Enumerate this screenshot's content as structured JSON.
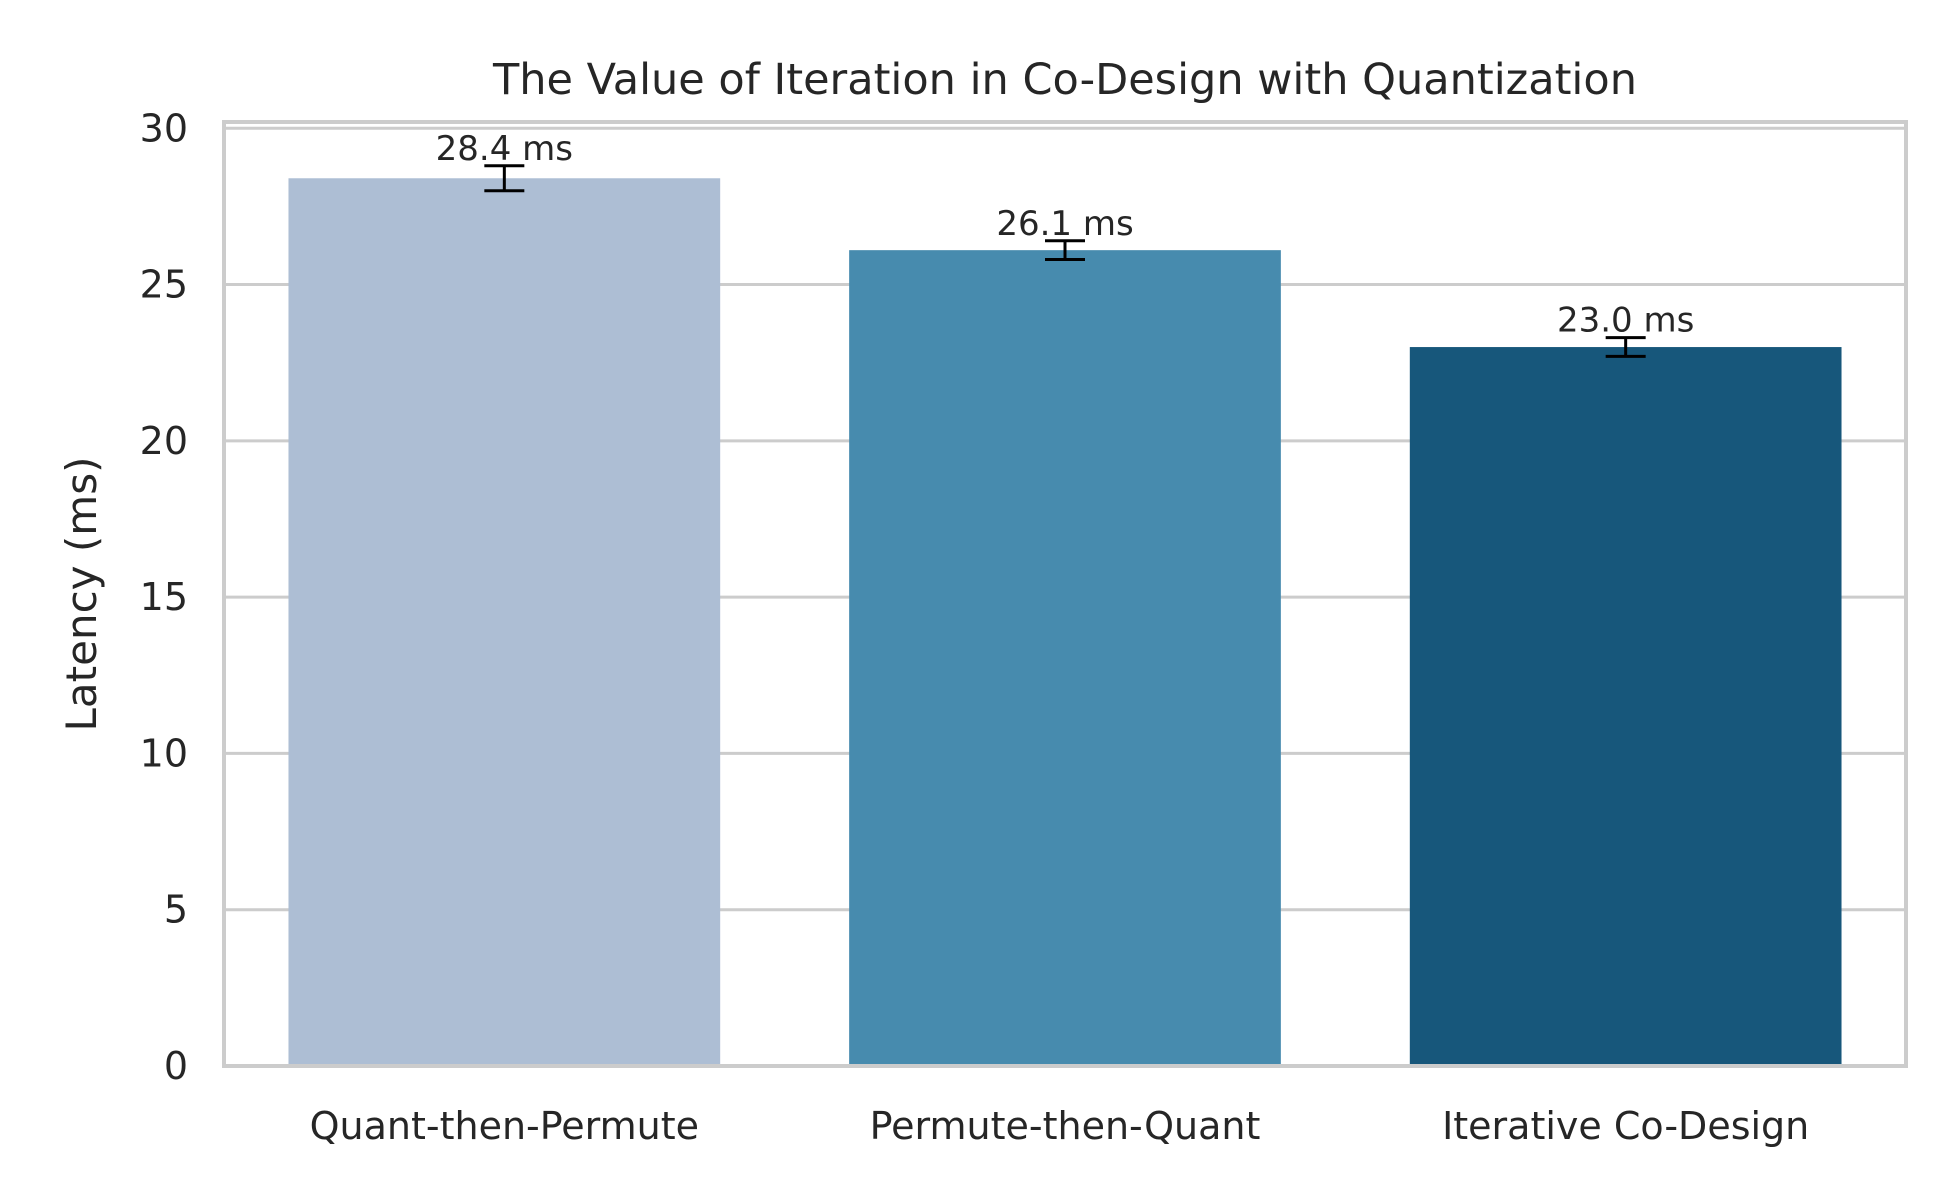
{
  "chart_data": {
    "type": "bar",
    "title": "The Value of Iteration in Co-Design with Quantization",
    "xlabel": "",
    "ylabel": "Latency (ms)",
    "ylim": [
      0,
      30.2
    ],
    "yticks": [
      0,
      5,
      10,
      15,
      20,
      25,
      30
    ],
    "grid": true,
    "categories": [
      "Quant-then-Permute",
      "Permute-then-Quant",
      "Iterative Co-Design"
    ],
    "values": [
      28.4,
      26.1,
      23.0
    ],
    "error": [
      0.4,
      0.3,
      0.3
    ],
    "data_labels": [
      "28.4 ms",
      "26.1 ms",
      "23.0 ms"
    ],
    "colors": [
      "#adbed4",
      "#478bae",
      "#17577b"
    ]
  }
}
